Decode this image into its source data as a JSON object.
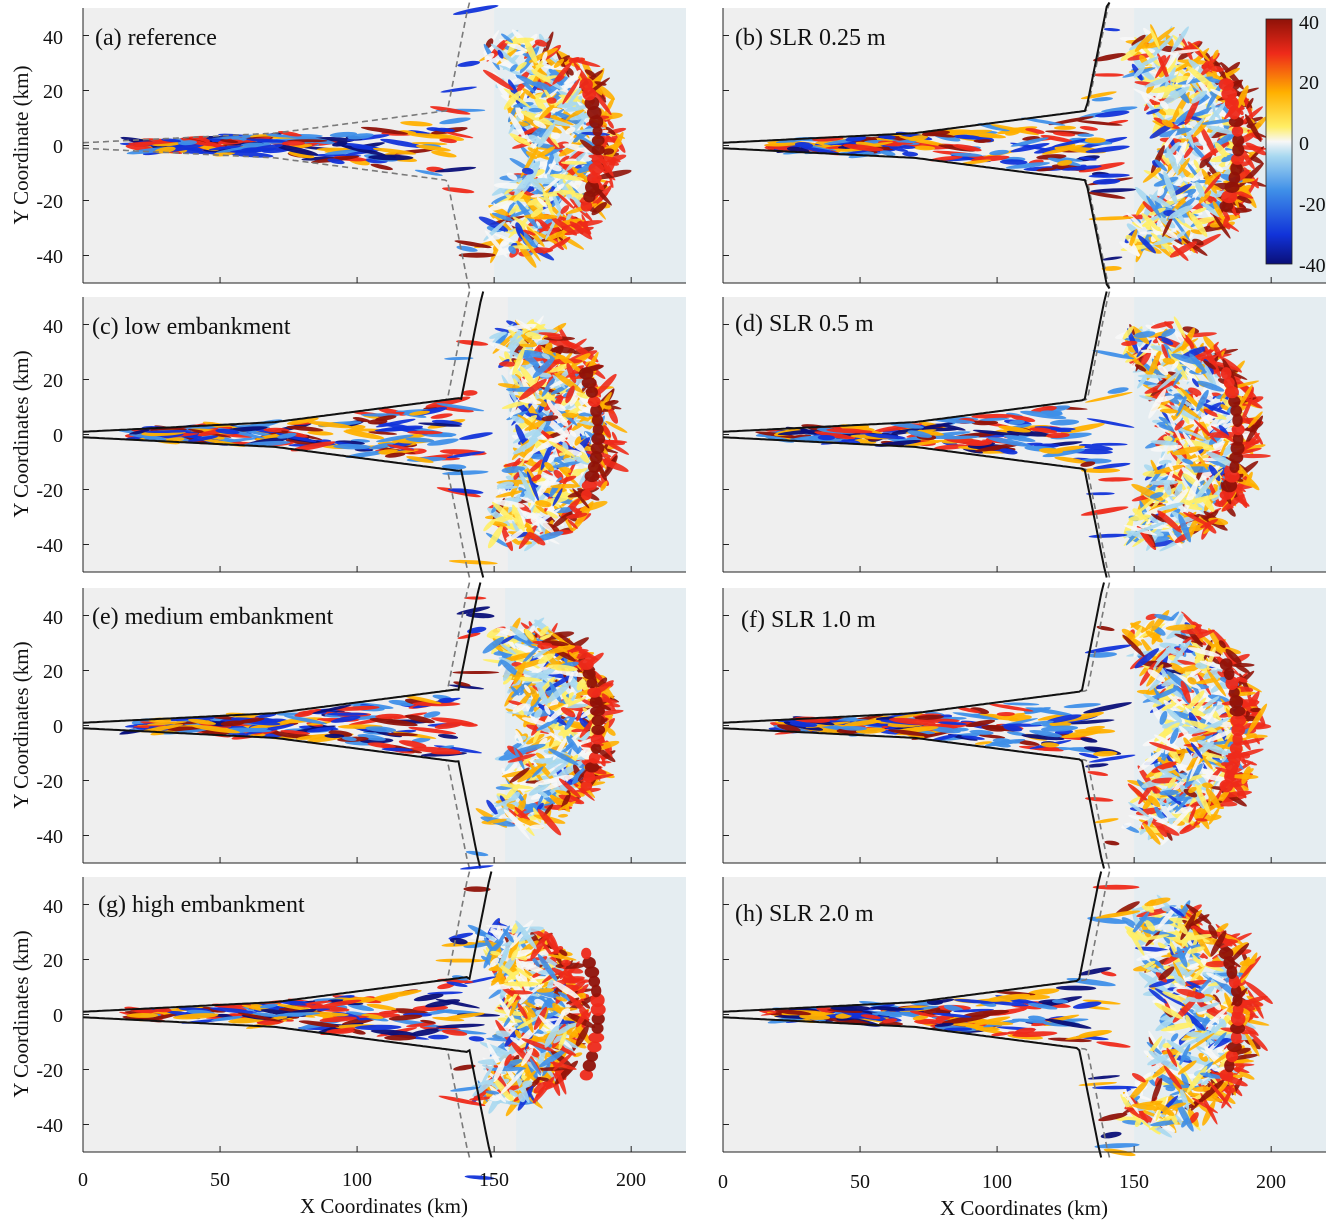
{
  "chart_data": [
    {
      "type": "heatmap",
      "title": "(a) reference",
      "ylabel": "Y Coordinate (km)",
      "xlabel": "",
      "xlim": [
        0,
        220
      ],
      "ylim": [
        -50,
        50
      ],
      "yticks": [
        "40",
        "20",
        "0",
        "-20",
        "-40"
      ],
      "xticks": [],
      "shoreline_solid": false,
      "solid_shift": 0,
      "plume_radius": 32,
      "wave_direction": "x"
    },
    {
      "type": "heatmap",
      "title": "(b) SLR 0.25 m",
      "ylabel": "",
      "xlabel": "",
      "xlim": [
        0,
        220
      ],
      "ylim": [
        -50,
        50
      ],
      "yticks": [],
      "xticks": [],
      "shoreline_solid": true,
      "solid_shift": -0.5,
      "plume_radius": 32
    },
    {
      "type": "heatmap",
      "title": "(c) low embankment",
      "ylabel": "Y Coordinates (km)",
      "xlabel": "",
      "xlim": [
        0,
        220
      ],
      "ylim": [
        -50,
        50
      ],
      "yticks": [
        "40",
        "20",
        "0",
        "-20",
        "-40"
      ],
      "xticks": [],
      "shoreline_solid": true,
      "solid_shift": 5,
      "plume_radius": 32
    },
    {
      "type": "heatmap",
      "title": "(d) SLR 0.5 m",
      "ylabel": "",
      "xlabel": "",
      "xlim": [
        0,
        220
      ],
      "ylim": [
        -50,
        50
      ],
      "yticks": [],
      "xticks": [],
      "shoreline_solid": true,
      "solid_shift": -1,
      "plume_radius": 32
    },
    {
      "type": "heatmap",
      "title": "(e) medium embankment",
      "ylabel": "Y Coordinates (km)",
      "xlabel": "",
      "xlim": [
        0,
        220
      ],
      "ylim": [
        -50,
        50
      ],
      "yticks": [
        "40",
        "20",
        "0",
        "-20",
        "-40"
      ],
      "xticks": [],
      "shoreline_solid": true,
      "solid_shift": 4,
      "plume_radius": 30
    },
    {
      "type": "heatmap",
      "title": "(f) SLR 1.0 m",
      "ylabel": "",
      "xlabel": "",
      "xlim": [
        0,
        220
      ],
      "ylim": [
        -50,
        50
      ],
      "yticks": [],
      "xticks": [],
      "shoreline_solid": true,
      "solid_shift": -2,
      "plume_radius": 32
    },
    {
      "type": "heatmap",
      "title": "(g) high embankment",
      "ylabel": "Y Coordinates (km)",
      "xlabel": "X Coordinates (km)",
      "xlim": [
        0,
        220
      ],
      "ylim": [
        -50,
        50
      ],
      "yticks": [
        "40",
        "20",
        "0",
        "-20",
        "-40"
      ],
      "xticks": [
        "0",
        "50",
        "100",
        "150",
        "200"
      ],
      "shoreline_solid": true,
      "solid_shift": 8,
      "plume_radius": 26
    },
    {
      "type": "heatmap",
      "title": "(h) SLR 2.0 m",
      "ylabel": "",
      "xlabel": "X Coordinates (km)",
      "xlim": [
        0,
        220
      ],
      "ylim": [
        -50,
        50
      ],
      "yticks": [],
      "xticks": [
        "0",
        "50",
        "100",
        "150",
        "200"
      ],
      "shoreline_solid": true,
      "solid_shift": -3,
      "plume_radius": 33
    }
  ],
  "colorbar": {
    "ticks": [
      "40",
      "20",
      "0",
      "-20",
      "-40"
    ],
    "range": [
      -40,
      40
    ],
    "colors": [
      "#0a0f78",
      "#1133d9",
      "#3f8fe8",
      "#a8d8f0",
      "#f7f7f7",
      "#ffee66",
      "#ffb000",
      "#ee2a1a",
      "#8f1208"
    ]
  },
  "colors": {
    "background": "#efefef",
    "sea": "#e5edf1",
    "shoreline": "#111111",
    "reference_dashed": "#7a7a7a"
  }
}
